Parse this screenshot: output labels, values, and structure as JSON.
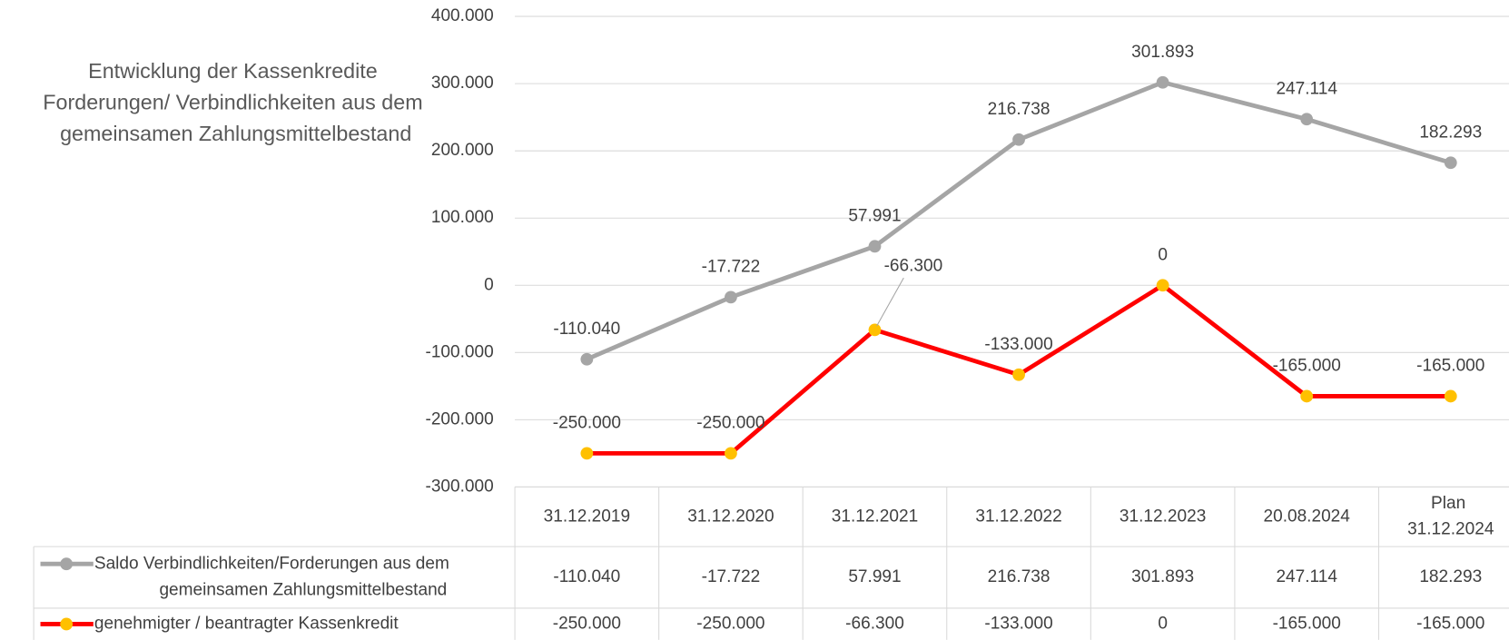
{
  "chart_data": {
    "type": "line",
    "title": "Entwicklung der Kassenkredite Forderungen/ Verbindlichkeiten aus dem gemeinsamen Zahlungsmittelbestand",
    "categories": [
      "31.12.2019",
      "31.12.2020",
      "31.12.2021",
      "31.12.2022",
      "31.12.2023",
      "20.08.2024",
      "Plan 31.12.2024"
    ],
    "series": [
      {
        "name": "Saldo Verbindlichkeiten/Forderungen aus dem gemeinsamen Zahlungsmittelbestand",
        "color": "#a5a5a5",
        "marker_color": "#a5a5a5",
        "values": [
          -110040,
          -17722,
          57991,
          216738,
          301893,
          247114,
          182293
        ],
        "value_labels": [
          "-110.040",
          "-17.722",
          "57.991",
          "216.738",
          "301.893",
          "247.114",
          "182.293"
        ]
      },
      {
        "name": "genehmigter / beantragter Kassenkredit",
        "color": "#ff0000",
        "marker_color": "#ffc000",
        "values": [
          -250000,
          -250000,
          -66300,
          -133000,
          0,
          -165000,
          -165000
        ],
        "value_labels": [
          "-250.000",
          "-250.000",
          "-66.300",
          "-133.000",
          "0",
          "-165.000",
          "-165.000"
        ]
      }
    ],
    "ylim": [
      -300000,
      400000
    ],
    "yticks": [
      {
        "value": -300000,
        "label": "-300.000"
      },
      {
        "value": -200000,
        "label": "-200.000"
      },
      {
        "value": -100000,
        "label": "-100.000"
      },
      0,
      {
        "value": 100000,
        "label": "100.000"
      },
      {
        "value": 200000,
        "label": "200.000"
      },
      {
        "value": 300000,
        "label": "300.000"
      },
      {
        "value": 400000,
        "label": "400.000"
      }
    ],
    "grid": true,
    "data_table": true
  }
}
